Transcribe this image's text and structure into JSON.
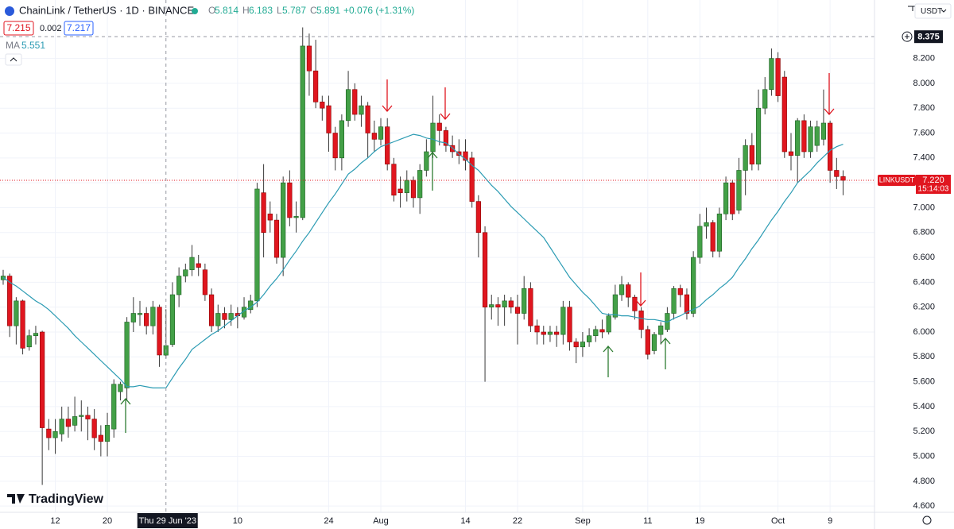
{
  "chart_data": {
    "type": "candlestick",
    "title": "ChainLink / TetherUS · 1D · BINANCE",
    "ohlc_letters": [
      "O",
      "H",
      "L",
      "C"
    ],
    "change_label": "+0.076 (+1.31%)",
    "quote": {
      "bid": 7.215,
      "spread": 0.002,
      "ask": 7.217
    },
    "currency": "USDT",
    "symbol": "LINKUSDT",
    "last_price_label": "7.220",
    "countdown": "15:14:03",
    "crosshair_price": 8.375,
    "crosshair_date": "Thu 29 Jun '23",
    "brand": "TradingView",
    "up_color": "#43a047",
    "down_color": "#e0161f",
    "open": [
      6.42,
      6.45,
      6.05,
      6.25,
      5.88,
      5.97,
      6.0,
      5.22,
      5.15,
      5.18,
      5.3,
      5.25,
      5.32,
      5.33,
      5.3,
      5.17,
      5.12,
      5.22,
      5.52,
      5.55,
      6.08,
      6.14,
      6.15,
      6.05,
      6.2,
      5.814,
      5.9,
      6.3,
      6.45,
      6.5,
      6.55,
      6.5,
      6.3,
      6.05,
      6.15,
      6.1,
      6.15,
      6.12,
      6.18,
      6.25,
      7.12,
      6.95,
      6.9,
      6.6,
      7.2,
      6.92,
      6.92,
      8.3,
      8.1,
      7.85,
      7.82,
      7.6,
      7.4,
      7.7,
      7.95,
      7.75,
      7.82,
      7.6,
      7.55,
      7.65,
      7.35,
      7.15,
      7.12,
      7.22,
      7.08,
      7.3,
      7.45,
      7.68,
      7.62,
      7.5,
      7.45,
      7.45,
      7.4,
      7.05,
      6.8,
      6.2,
      6.22,
      6.2,
      6.25,
      6.2,
      6.15,
      6.35,
      6.05,
      6.0,
      5.98,
      6.0,
      5.98,
      6.2,
      5.92,
      5.88,
      5.92,
      5.97,
      6.02,
      6.0,
      6.12,
      6.3,
      6.38,
      6.28,
      6.17,
      6.02,
      5.85,
      5.98,
      6.02,
      6.15,
      6.35,
      6.3,
      6.15,
      6.6,
      6.85,
      6.88,
      6.65,
      6.95,
      7.2,
      6.98,
      7.3,
      7.5,
      7.35,
      7.8,
      7.95,
      8.2,
      8.05,
      7.45,
      7.42,
      7.7,
      7.45,
      7.5,
      7.55,
      7.68,
      7.3,
      7.25
    ],
    "high": [
      6.5,
      6.47,
      6.28,
      6.26,
      6.02,
      6.05,
      6.01,
      5.3,
      5.3,
      5.4,
      5.4,
      5.48,
      5.45,
      5.4,
      5.38,
      5.25,
      5.35,
      5.62,
      5.6,
      6.12,
      6.28,
      6.25,
      6.2,
      6.25,
      6.22,
      6.183,
      6.4,
      6.52,
      6.55,
      6.7,
      6.62,
      6.55,
      6.35,
      6.22,
      6.2,
      6.22,
      6.2,
      6.28,
      6.3,
      7.2,
      7.35,
      7.05,
      6.95,
      7.25,
      7.3,
      7.05,
      8.45,
      8.4,
      8.35,
      7.9,
      7.9,
      7.65,
      7.75,
      8.1,
      8.0,
      7.9,
      7.85,
      7.7,
      7.72,
      7.72,
      7.4,
      7.25,
      7.3,
      7.25,
      7.35,
      7.55,
      7.9,
      7.75,
      7.65,
      7.58,
      7.55,
      7.55,
      7.45,
      7.1,
      6.85,
      6.3,
      6.28,
      6.3,
      6.28,
      6.3,
      6.45,
      6.4,
      6.1,
      6.05,
      6.05,
      6.05,
      6.25,
      6.25,
      5.95,
      6.0,
      6.03,
      6.05,
      6.1,
      6.15,
      6.38,
      6.45,
      6.4,
      6.3,
      6.2,
      6.05,
      6.0,
      6.08,
      6.2,
      6.37,
      6.38,
      6.35,
      6.65,
      6.95,
      7.0,
      6.9,
      7.0,
      7.25,
      7.22,
      7.4,
      7.55,
      7.6,
      7.95,
      8.05,
      8.28,
      8.25,
      8.1,
      7.6,
      7.72,
      7.75,
      7.7,
      7.7,
      7.95,
      7.7,
      7.4,
      7.3
    ],
    "low": [
      6.38,
      5.96,
      5.9,
      5.82,
      5.85,
      5.9,
      4.77,
      5.05,
      5.02,
      5.12,
      5.15,
      5.2,
      5.2,
      5.13,
      5.05,
      5.0,
      5.0,
      5.15,
      5.45,
      5.45,
      6.0,
      6.05,
      5.98,
      5.98,
      5.72,
      5.787,
      5.88,
      6.2,
      6.4,
      6.45,
      6.45,
      6.25,
      6.0,
      6.0,
      6.03,
      6.05,
      6.03,
      6.1,
      6.15,
      6.2,
      6.6,
      6.8,
      6.55,
      6.45,
      6.85,
      6.8,
      6.9,
      7.9,
      7.8,
      7.7,
      7.45,
      7.3,
      7.3,
      7.65,
      7.7,
      7.65,
      7.4,
      7.45,
      7.5,
      7.3,
      7.05,
      7.0,
      7.05,
      7.0,
      6.95,
      7.25,
      7.4,
      7.5,
      7.45,
      7.4,
      7.35,
      7.3,
      7.0,
      6.6,
      5.6,
      6.1,
      6.05,
      6.05,
      6.15,
      5.9,
      6.1,
      6.0,
      5.9,
      5.9,
      5.92,
      5.88,
      5.9,
      5.85,
      5.75,
      5.8,
      5.88,
      5.92,
      5.95,
      5.98,
      6.1,
      6.25,
      6.2,
      6.1,
      5.95,
      5.78,
      5.82,
      5.9,
      6.0,
      6.1,
      6.2,
      6.1,
      6.12,
      6.55,
      6.75,
      6.6,
      6.6,
      6.9,
      6.9,
      6.95,
      7.1,
      7.3,
      7.3,
      7.75,
      7.9,
      7.85,
      7.4,
      7.3,
      7.2,
      7.4,
      7.4,
      7.45,
      7.5,
      7.2,
      7.15,
      7.1
    ],
    "close": [
      6.45,
      6.05,
      6.25,
      5.87,
      5.97,
      5.99,
      5.23,
      5.15,
      5.2,
      5.3,
      5.24,
      5.32,
      5.33,
      5.3,
      5.15,
      5.12,
      5.25,
      5.58,
      5.58,
      6.08,
      6.15,
      6.15,
      6.05,
      6.2,
      5.815,
      5.891,
      6.3,
      6.45,
      6.5,
      6.6,
      6.52,
      6.3,
      6.05,
      6.15,
      6.1,
      6.15,
      6.13,
      6.2,
      6.25,
      7.15,
      6.8,
      6.9,
      6.6,
      7.2,
      6.92,
      6.93,
      8.3,
      8.1,
      7.85,
      7.8,
      7.6,
      7.4,
      7.7,
      7.95,
      7.75,
      7.82,
      7.6,
      7.55,
      7.65,
      7.35,
      7.1,
      7.12,
      7.22,
      7.08,
      7.3,
      7.45,
      7.68,
      7.62,
      7.5,
      7.45,
      7.42,
      7.38,
      7.05,
      6.8,
      6.2,
      6.22,
      6.2,
      6.25,
      6.2,
      6.15,
      6.35,
      6.05,
      6.0,
      5.98,
      6.0,
      5.98,
      6.2,
      5.92,
      5.88,
      5.92,
      5.97,
      6.02,
      6.0,
      6.13,
      6.3,
      6.38,
      6.28,
      6.17,
      6.02,
      5.82,
      5.98,
      6.05,
      6.15,
      6.35,
      6.3,
      6.15,
      6.6,
      6.85,
      6.88,
      6.65,
      6.95,
      7.2,
      6.95,
      7.3,
      7.5,
      7.35,
      7.8,
      7.95,
      8.2,
      7.9,
      7.45,
      7.42,
      7.7,
      7.45,
      7.65,
      7.65,
      7.68,
      7.3,
      7.25,
      7.22
    ],
    "ma": {
      "name": "MA",
      "color": "#2b9bb3",
      "values": [
        6.44,
        6.4,
        6.37,
        6.33,
        6.29,
        6.25,
        6.22,
        6.18,
        6.13,
        6.08,
        6.03,
        5.97,
        5.92,
        5.87,
        5.82,
        5.77,
        5.72,
        5.67,
        5.62,
        5.56,
        5.56,
        5.57,
        5.56,
        5.55,
        5.55,
        5.551,
        5.63,
        5.71,
        5.78,
        5.86,
        5.9,
        5.94,
        5.98,
        6.01,
        6.05,
        6.09,
        6.13,
        6.17,
        6.2,
        6.24,
        6.3,
        6.37,
        6.43,
        6.5,
        6.58,
        6.65,
        6.73,
        6.8,
        6.88,
        6.96,
        7.04,
        7.11,
        7.19,
        7.27,
        7.31,
        7.36,
        7.4,
        7.45,
        7.49,
        7.51,
        7.53,
        7.55,
        7.57,
        7.59,
        7.58,
        7.56,
        7.55,
        7.53,
        7.52,
        7.48,
        7.43,
        7.39,
        7.34,
        7.3,
        7.24,
        7.18,
        7.13,
        7.07,
        7.01,
        6.96,
        6.91,
        6.86,
        6.81,
        6.76,
        6.68,
        6.6,
        6.52,
        6.44,
        6.38,
        6.32,
        6.27,
        6.21,
        6.15,
        6.14,
        6.14,
        6.13,
        6.13,
        6.12,
        6.11,
        6.1,
        6.1,
        6.09,
        6.08,
        6.11,
        6.13,
        6.16,
        6.18,
        6.21,
        6.26,
        6.3,
        6.35,
        6.39,
        6.44,
        6.52,
        6.59,
        6.67,
        6.74,
        6.82,
        6.9,
        6.97,
        7.05,
        7.12,
        7.2,
        7.25,
        7.3,
        7.36,
        7.41,
        7.46,
        7.49,
        7.51
      ]
    },
    "ylim": [
      4.55,
      8.67
    ],
    "yticks": [
      {
        "value": 4.6,
        "label": "4.600"
      },
      {
        "value": 4.8,
        "label": "4.800"
      },
      {
        "value": 5.0,
        "label": "5.000"
      },
      {
        "value": 5.2,
        "label": "5.200"
      },
      {
        "value": 5.4,
        "label": "5.400"
      },
      {
        "value": 5.6,
        "label": "5.600"
      },
      {
        "value": 5.8,
        "label": "5.800"
      },
      {
        "value": 6.0,
        "label": "6.000"
      },
      {
        "value": 6.2,
        "label": "6.200"
      },
      {
        "value": 6.4,
        "label": "6.400"
      },
      {
        "value": 6.6,
        "label": "6.600"
      },
      {
        "value": 6.8,
        "label": "6.800"
      },
      {
        "value": 7.0,
        "label": "7.000"
      },
      {
        "value": 7.2,
        "label": "7.200"
      },
      {
        "value": 7.4,
        "label": "7.400"
      },
      {
        "value": 7.6,
        "label": "7.600"
      },
      {
        "value": 7.8,
        "label": "7.800"
      },
      {
        "value": 8.0,
        "label": "8.000"
      },
      {
        "value": 8.2,
        "label": "8.200"
      }
    ],
    "xticks": [
      "12",
      "20",
      "10",
      "24",
      "Aug",
      "14",
      "22",
      "Sep",
      "11",
      "19",
      "Oct",
      "9"
    ],
    "grid": true
  }
}
